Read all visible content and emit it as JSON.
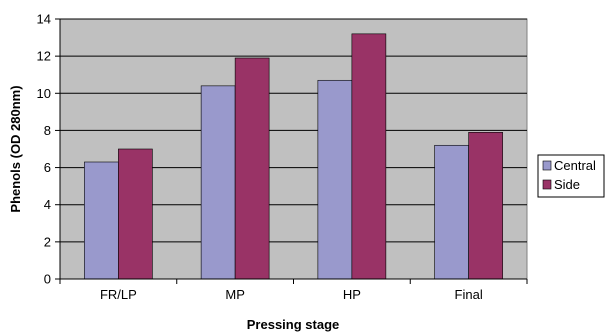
{
  "chart_data": {
    "type": "bar",
    "title": "",
    "xlabel": "Pressing stage",
    "ylabel": "Phenols (OD 280nm)",
    "categories": [
      "FR/LP",
      "MP",
      "HP",
      "Final"
    ],
    "series": [
      {
        "name": "Central",
        "values": [
          6.3,
          10.4,
          10.7,
          7.2
        ],
        "color": "#9999cc"
      },
      {
        "name": "Side",
        "values": [
          7.0,
          11.9,
          13.2,
          7.9
        ],
        "color": "#993366"
      }
    ],
    "ylim": [
      0,
      14
    ],
    "yticks": [
      0,
      2,
      4,
      6,
      8,
      10,
      12,
      14
    ],
    "grid": true,
    "plot_background": "#c0c0c0",
    "legend_position": "right"
  }
}
